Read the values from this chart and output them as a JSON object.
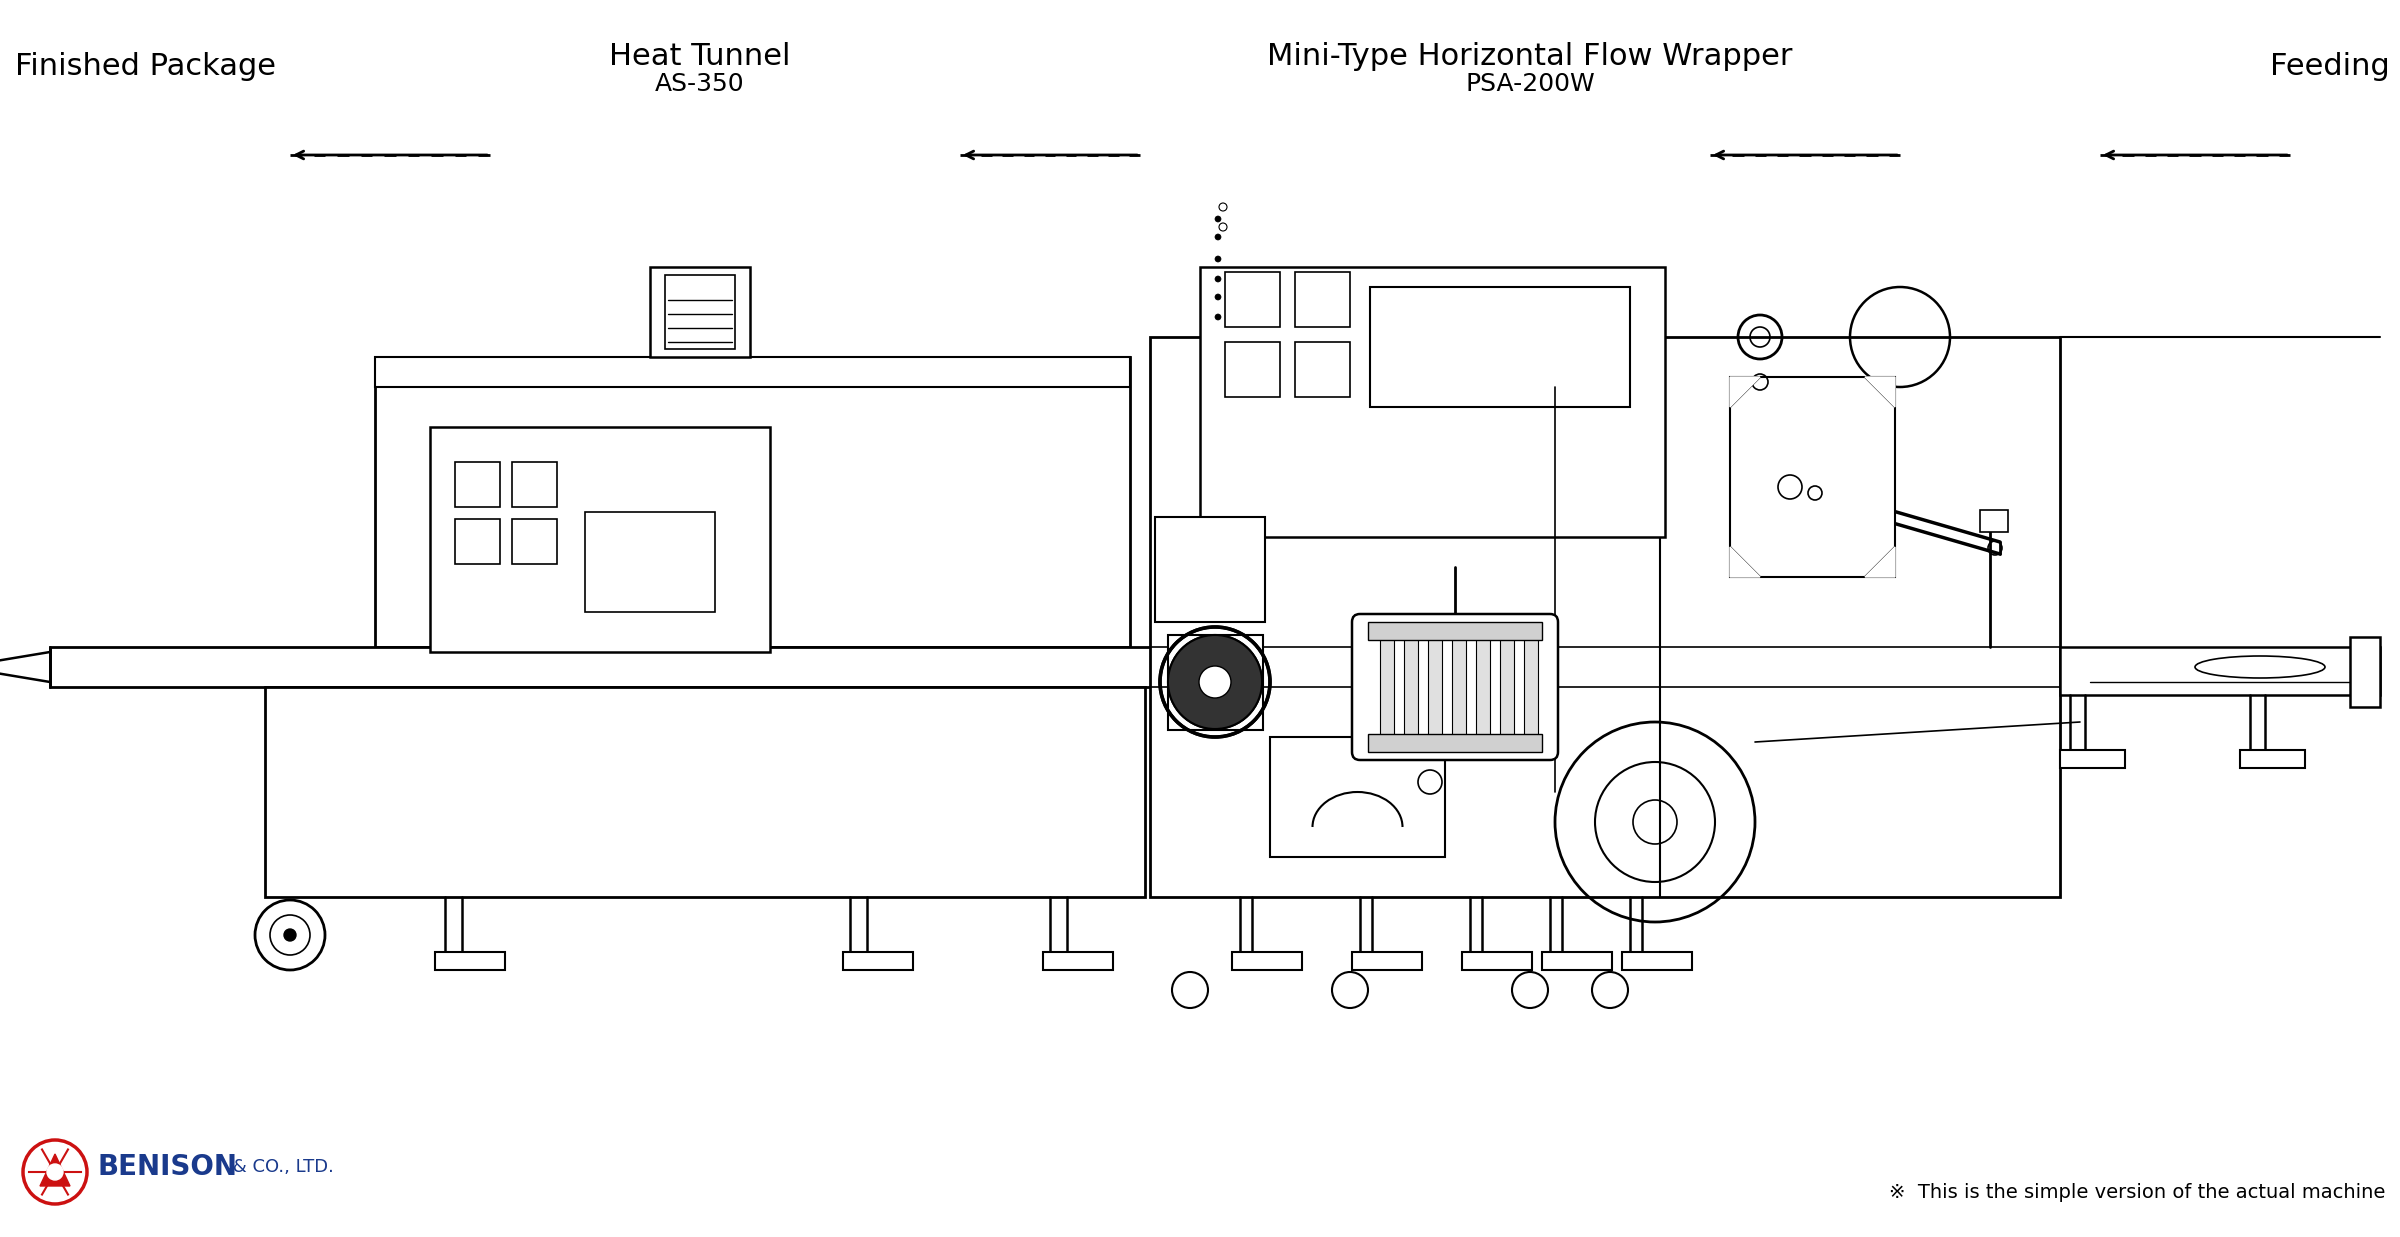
{
  "title_left": "Finished Package",
  "title_heat": "Heat Tunnel",
  "title_heat_model": "AS-350",
  "title_wrapper": "Mini-Type Horizontal Flow Wrapper",
  "title_wrapper_model": "PSA-200W",
  "title_right": "Feeding",
  "footer_right": "※  This is the simple version of the actual machine",
  "bg_color": "#ffffff",
  "line_color": "#000000",
  "benison_blue": "#1a3a8c",
  "benison_red": "#cc1111",
  "font_family": "Courier New",
  "title_fontsize": 22,
  "subtitle_fontsize": 18
}
